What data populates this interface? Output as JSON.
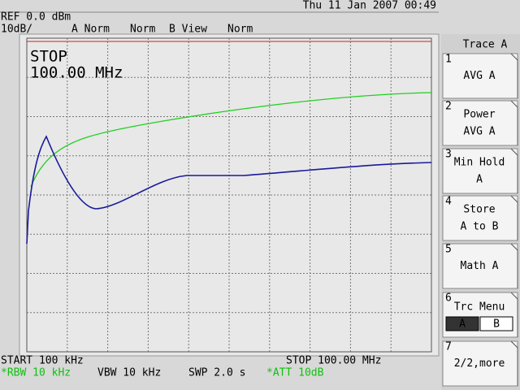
{
  "header": {
    "datetime": "Thu 11 Jan 2007 00:49",
    "ref": "REF 0.0 dBm",
    "scale": "10dB/",
    "trace_a_mode": "A_Norm",
    "trace_a_state": "Norm",
    "trace_b_mode": "B_View",
    "trace_b_state": "Norm"
  },
  "overlay": {
    "status": "STOP",
    "frequency": "100.00 MHz"
  },
  "footer": {
    "start": "START 100 kHz",
    "stop": "STOP 100.00 MHz",
    "rbw": "*RBW 10 kHz",
    "vbw": "VBW 10 kHz",
    "swp": "SWP 2.0 s",
    "att": "*ATT 10dB"
  },
  "softkeys": {
    "title": "Trace A",
    "keys": [
      {
        "number": "1",
        "lines": [
          "AVG A"
        ]
      },
      {
        "number": "2",
        "lines": [
          "Power",
          "AVG A"
        ]
      },
      {
        "number": "3",
        "lines": [
          "Min Hold",
          "A"
        ]
      },
      {
        "number": "4",
        "lines": [
          "Store",
          "A to B"
        ]
      },
      {
        "number": "5",
        "lines": [
          "Math A"
        ]
      },
      {
        "number": "6",
        "lines": [
          "Trc Menu"
        ],
        "options": [
          "A",
          "B"
        ]
      },
      {
        "number": "7",
        "lines": [
          "2/2,more"
        ]
      }
    ]
  }
}
